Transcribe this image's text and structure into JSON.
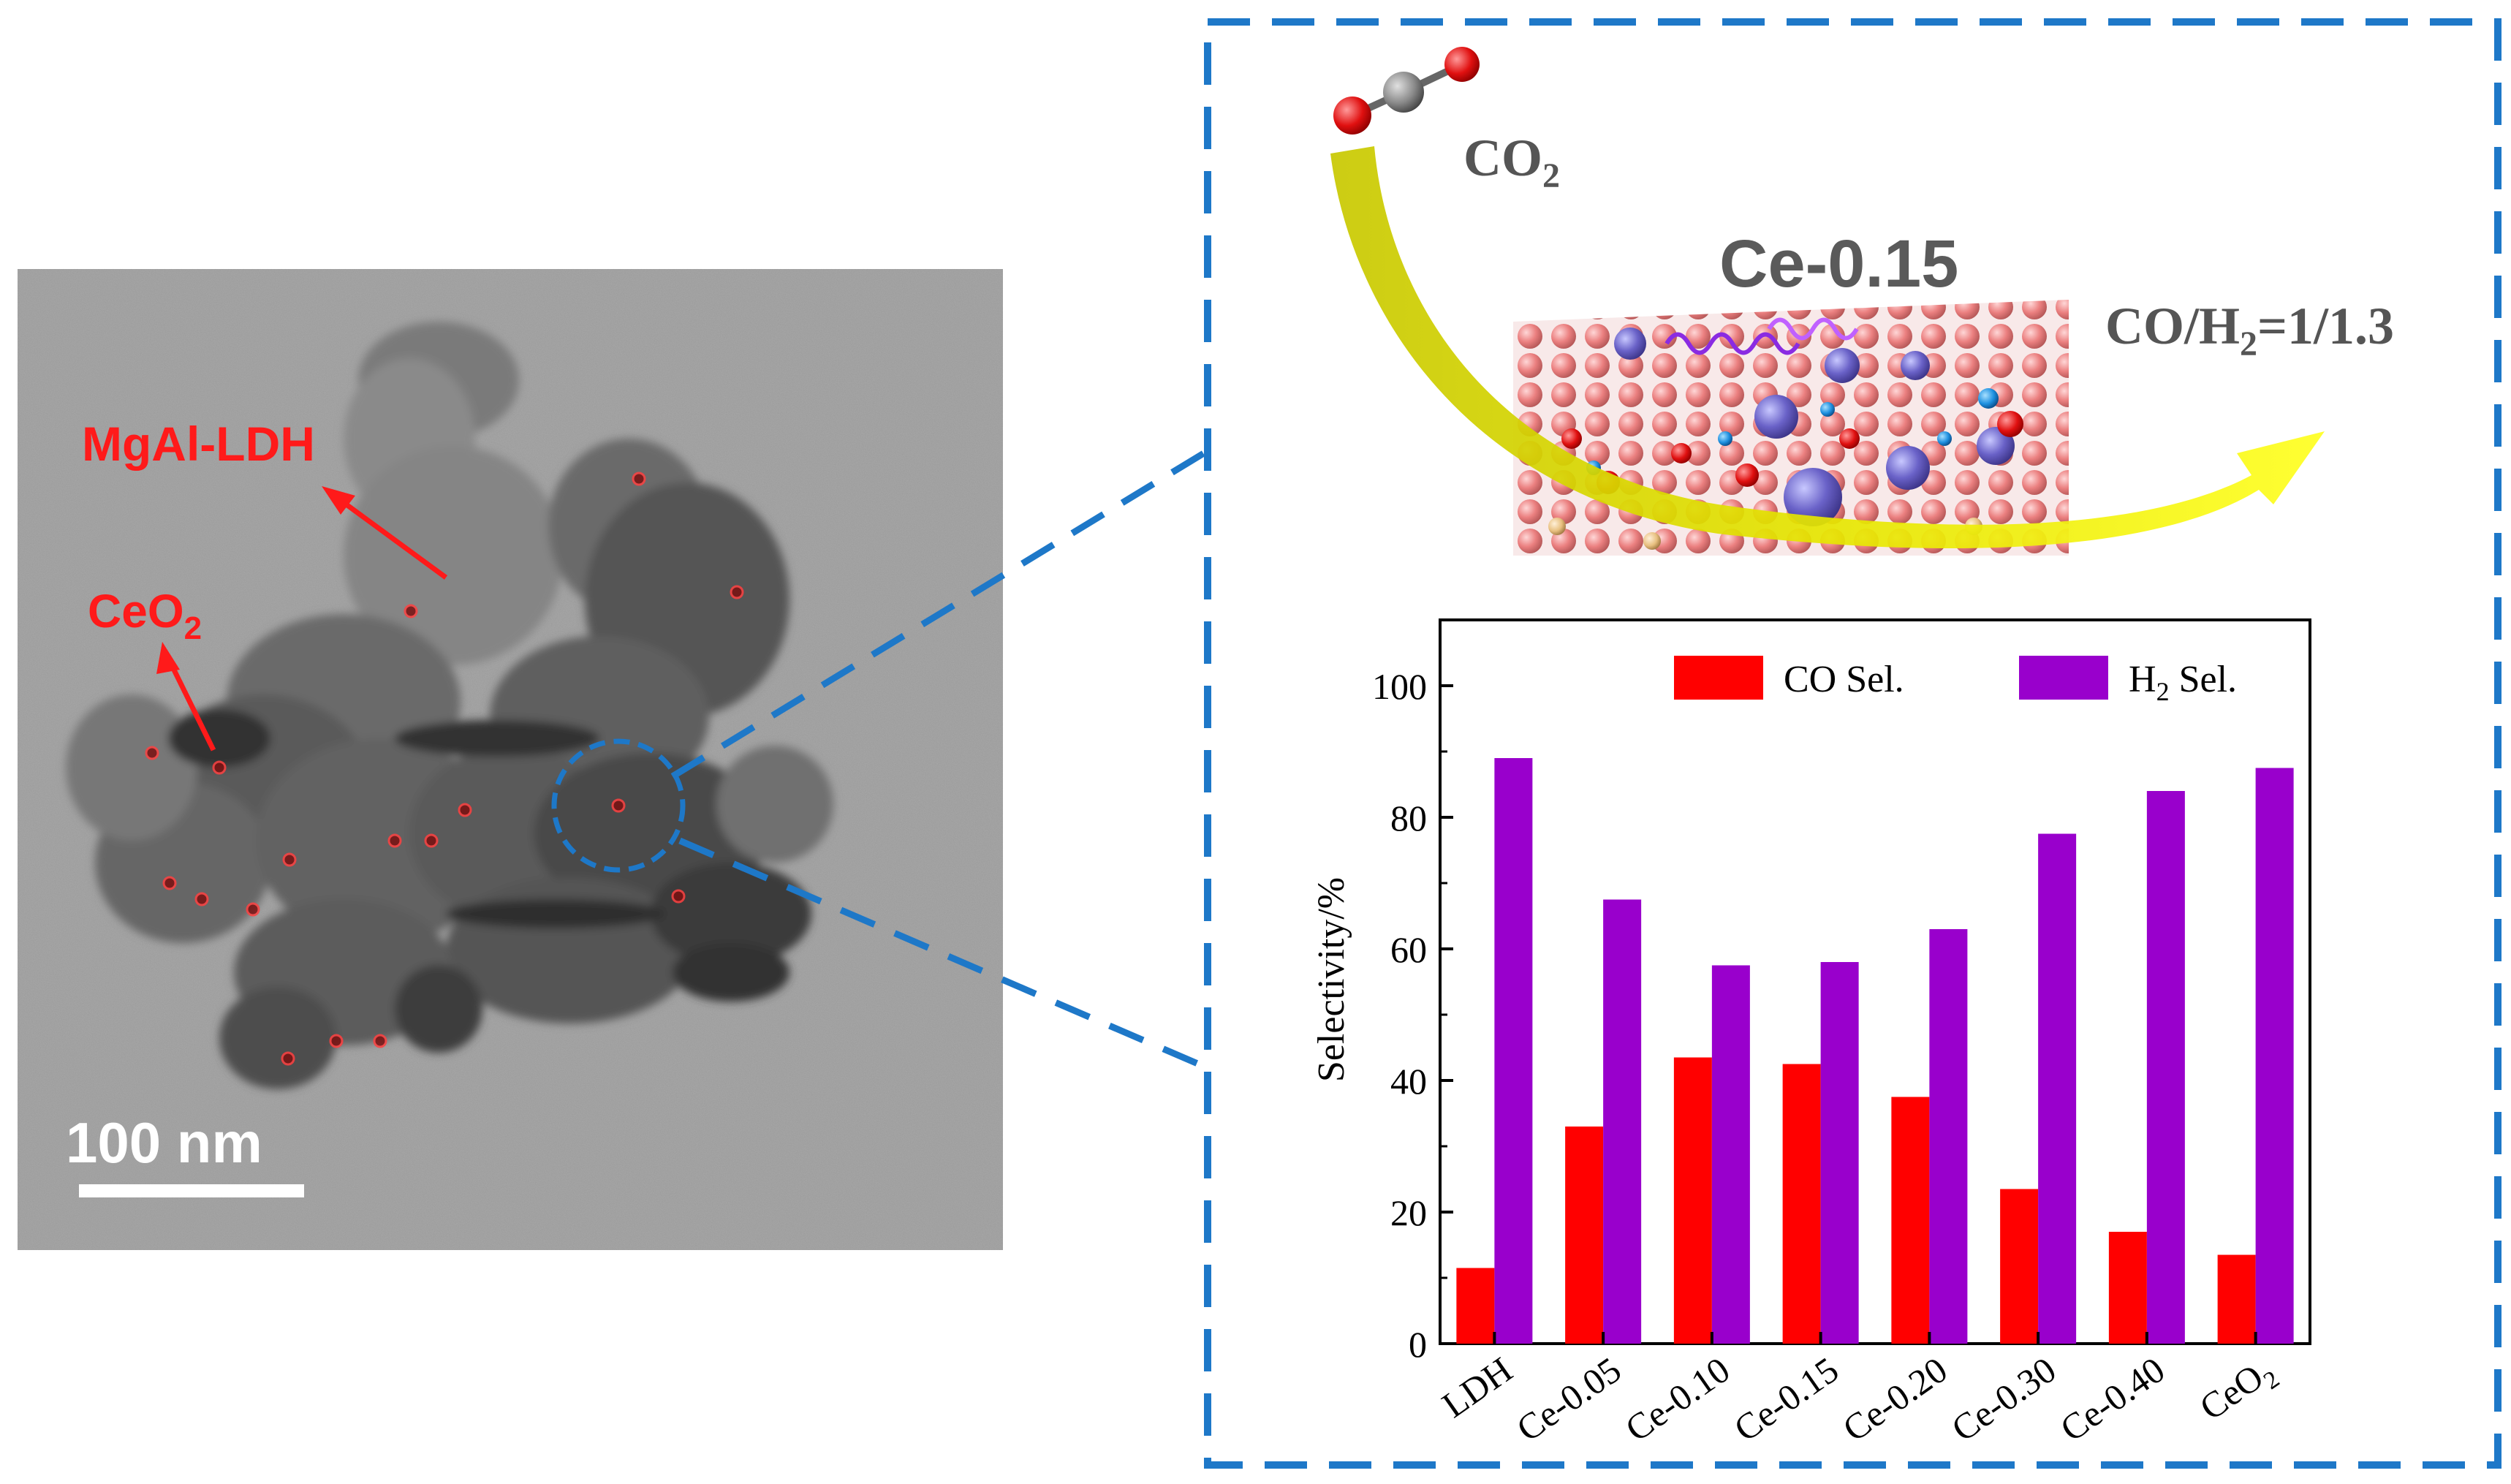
{
  "tem": {
    "label_ldh": "MgAl-LDH",
    "label_ceo2": "CeO",
    "label_ceo2_sub": "2",
    "scale_bar": "100 nm"
  },
  "schematic": {
    "reactant": "CO",
    "reactant_sub": "2",
    "catalyst": "Ce-0.15",
    "product_prefix": "CO/H",
    "product_sub": "2",
    "product_suffix": "=1/1.3"
  },
  "colors": {
    "co": "#ff0000",
    "h2": "#9900cc",
    "frame": "#1e78c8",
    "annotation": "#ff1a1a",
    "arrow": "#e6e600"
  },
  "chart_data": {
    "type": "bar",
    "title": "",
    "xlabel": "",
    "ylabel": "Selectivity/%",
    "ylim": [
      0,
      110
    ],
    "yticks": [
      0,
      20,
      40,
      60,
      80,
      100
    ],
    "categories": [
      "LDH",
      "Ce-0.05",
      "Ce-0.10",
      "Ce-0.15",
      "Ce-0.20",
      "Ce-0.30",
      "Ce-0.40",
      "CeO2"
    ],
    "category_labels": [
      {
        "text": "LDH",
        "sub": ""
      },
      {
        "text": "Ce-0.05",
        "sub": ""
      },
      {
        "text": "Ce-0.10",
        "sub": ""
      },
      {
        "text": "Ce-0.15",
        "sub": ""
      },
      {
        "text": "Ce-0.20",
        "sub": ""
      },
      {
        "text": "Ce-0.30",
        "sub": ""
      },
      {
        "text": "Ce-0.40",
        "sub": ""
      },
      {
        "text": "CeO",
        "sub": "2"
      }
    ],
    "legend_position": "top",
    "series": [
      {
        "name": "CO Sel.",
        "name_prefix": "CO Sel.",
        "name_sub": "",
        "name_suffix": "",
        "color": "#ff0000",
        "values": [
          11.5,
          33,
          43.5,
          42.5,
          37.5,
          23.5,
          17,
          13.5
        ]
      },
      {
        "name": "H2 Sel.",
        "name_prefix": "H",
        "name_sub": "2",
        "name_suffix": " Sel.",
        "color": "#9900cc",
        "values": [
          89,
          67.5,
          57.5,
          58,
          63,
          77.5,
          84,
          87.5
        ]
      }
    ]
  }
}
